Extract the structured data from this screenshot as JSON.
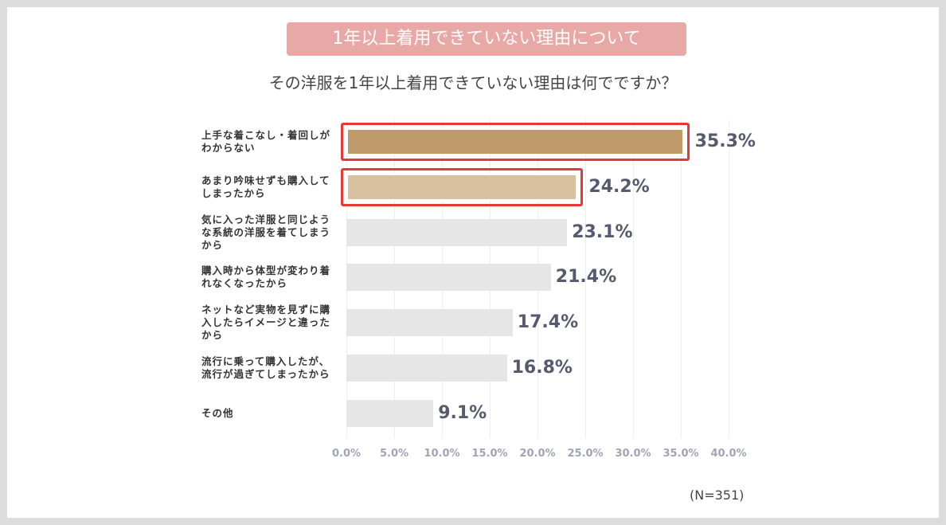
{
  "chart_data": {
    "type": "barh",
    "title": "1年以上着用できていない理由について",
    "subtitle": "その洋服を1年以上着用できていない理由は何でですか？",
    "categories": [
      "上手な着こなし・着回しがわからない",
      "あまり吟味せずも購入してしまったから",
      "気に入った洋服と同じような系統の洋服を着てしまうから",
      "購入時から体型が変わり着れなくなったから",
      "ネットなど実物を見ずに購入したらイメージと違ったから",
      "流行に乗って購入したが、流行が過ぎてしまったから",
      "その他"
    ],
    "values": [
      35.3,
      24.2,
      23.1,
      21.4,
      17.4,
      16.8,
      9.1
    ],
    "value_labels": [
      "35.3%",
      "24.2%",
      "23.1%",
      "21.4%",
      "17.4%",
      "16.8%",
      "9.1%"
    ],
    "colors": [
      "#bf9a6a",
      "#d8c0a0",
      "#e6e6e6",
      "#e6e6e6",
      "#e6e6e6",
      "#e6e6e6",
      "#e6e6e6"
    ],
    "highlight": [
      0,
      1
    ],
    "highlight_color": "#e53935",
    "xlim": [
      0,
      40
    ],
    "xticks": [
      {
        "value": 0,
        "label": "0.0%"
      },
      {
        "value": 5,
        "label": "5.0%"
      },
      {
        "value": 10,
        "label": "10.0%"
      },
      {
        "value": 15,
        "label": "15.0%"
      },
      {
        "value": 20,
        "label": "20.0%"
      },
      {
        "value": 25,
        "label": "25.0%"
      },
      {
        "value": 30,
        "label": "30.0%"
      },
      {
        "value": 35,
        "label": "35.0%"
      },
      {
        "value": 40,
        "label": "40.0%"
      }
    ],
    "grid": true,
    "note": "(N=351)"
  }
}
